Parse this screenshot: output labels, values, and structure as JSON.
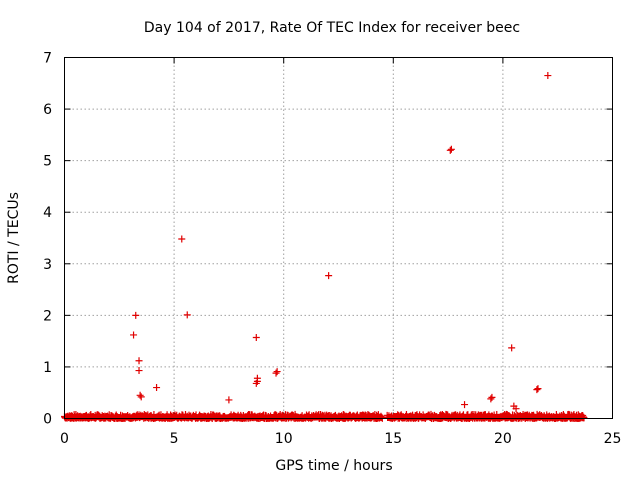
{
  "chart_data": {
    "type": "scatter",
    "title": "Day 104 of 2017, Rate Of TEC Index for receiver beec",
    "xlabel": "GPS time / hours",
    "ylabel": "ROTI / TECUs",
    "xlim": [
      0,
      25
    ],
    "ylim": [
      0,
      7
    ],
    "xticks": [
      0,
      5,
      10,
      15,
      20,
      25
    ],
    "yticks": [
      0,
      1,
      2,
      3,
      4,
      5,
      6,
      7
    ],
    "grid": true,
    "marker": "plus",
    "marker_color": "#e00000",
    "baseline_band": {
      "note": "dense cluster of points near zero",
      "x_range": [
        0.0,
        23.7
      ],
      "y_range": [
        0.0,
        0.08
      ],
      "gap_x_range": [
        14.5,
        14.7
      ]
    },
    "points": [
      {
        "x": 3.15,
        "y": 1.62
      },
      {
        "x": 3.25,
        "y": 2.0
      },
      {
        "x": 3.4,
        "y": 1.12
      },
      {
        "x": 3.4,
        "y": 0.93
      },
      {
        "x": 3.45,
        "y": 0.45
      },
      {
        "x": 3.5,
        "y": 0.42
      },
      {
        "x": 4.2,
        "y": 0.6
      },
      {
        "x": 5.35,
        "y": 3.48
      },
      {
        "x": 5.6,
        "y": 2.01
      },
      {
        "x": 7.5,
        "y": 0.36
      },
      {
        "x": 8.75,
        "y": 1.57
      },
      {
        "x": 8.75,
        "y": 0.68
      },
      {
        "x": 8.8,
        "y": 0.72
      },
      {
        "x": 8.8,
        "y": 0.78
      },
      {
        "x": 9.65,
        "y": 0.88
      },
      {
        "x": 9.7,
        "y": 0.91
      },
      {
        "x": 12.05,
        "y": 2.77
      },
      {
        "x": 17.6,
        "y": 5.2
      },
      {
        "x": 17.65,
        "y": 5.22
      },
      {
        "x": 18.25,
        "y": 0.27
      },
      {
        "x": 19.45,
        "y": 0.38
      },
      {
        "x": 19.5,
        "y": 0.41
      },
      {
        "x": 20.4,
        "y": 1.37
      },
      {
        "x": 20.5,
        "y": 0.24
      },
      {
        "x": 20.6,
        "y": 0.19
      },
      {
        "x": 21.55,
        "y": 0.56
      },
      {
        "x": 21.6,
        "y": 0.58
      },
      {
        "x": 22.05,
        "y": 6.65
      }
    ]
  }
}
